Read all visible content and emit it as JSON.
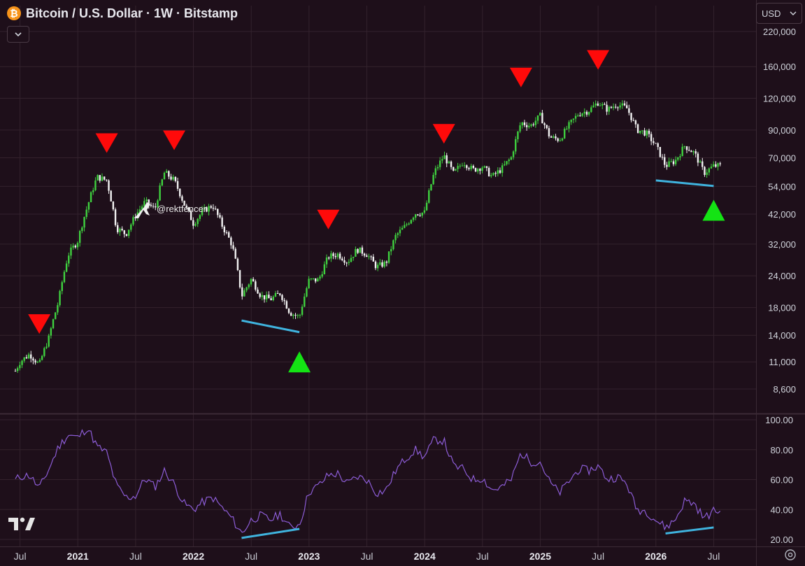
{
  "title": {
    "icon": "bitcoin-icon",
    "icon_glyph": "₿",
    "text": "Bitcoin / U.S. Dollar · 1W · Bitstamp"
  },
  "currency": {
    "value": "USD",
    "icon": "chevron-down-icon"
  },
  "collapse_icon": "chevron-down-icon",
  "settings_icon": "gear-icon",
  "logo": "tradingview-logo",
  "colors": {
    "background": "#1e0f1a",
    "grid": "#33222d",
    "bull": "#3fd13f",
    "bear": "#f2f2f2",
    "rsi": "#8c5cd6",
    "divergence": "#3fb3de",
    "sell_marker": "#ff0a0a",
    "buy_marker": "#14e314"
  },
  "chart_data": [
    {
      "type": "candlestick",
      "log_scale": true,
      "grid": true,
      "x_ticks": [
        "Jul",
        "2021",
        "Jul",
        "2022",
        "Jul",
        "2023",
        "Jul",
        "2024",
        "Jul",
        "2025",
        "Jul",
        "2026",
        "Jul"
      ],
      "y_ticks": [
        "220,000",
        "160,000",
        "120,000",
        "90,000",
        "70,000",
        "54,000",
        "42,000",
        "32,000",
        "24,000",
        "18,000",
        "14,000",
        "11,000",
        "8,600"
      ],
      "ylim": [
        7000,
        230000
      ],
      "annotation": "@rektfencer",
      "price_path": [
        [
          "2020-06",
          9200
        ],
        [
          "2020-07",
          11000
        ],
        [
          "2020-08",
          11800
        ],
        [
          "2020-09",
          10700
        ],
        [
          "2020-10",
          13700
        ],
        [
          "2020-11",
          19000
        ],
        [
          "2020-12",
          29000
        ],
        [
          "2021-01",
          33000
        ],
        [
          "2021-02",
          45000
        ],
        [
          "2021-03",
          58800
        ],
        [
          "2021-04",
          57000
        ],
        [
          "2021-05",
          37000
        ],
        [
          "2021-06",
          35000
        ],
        [
          "2021-07",
          41500
        ],
        [
          "2021-08",
          47000
        ],
        [
          "2021-09",
          43800
        ],
        [
          "2021-10",
          61300
        ],
        [
          "2021-11",
          57000
        ],
        [
          "2021-12",
          46300
        ],
        [
          "2022-01",
          38500
        ],
        [
          "2022-02",
          43200
        ],
        [
          "2022-03",
          45500
        ],
        [
          "2022-04",
          37700
        ],
        [
          "2022-05",
          31800
        ],
        [
          "2022-06",
          19900
        ],
        [
          "2022-07",
          23300
        ],
        [
          "2022-08",
          20000
        ],
        [
          "2022-09",
          19400
        ],
        [
          "2022-10",
          20500
        ],
        [
          "2022-11",
          17200
        ],
        [
          "2022-12",
          16500
        ],
        [
          "2023-01",
          23100
        ],
        [
          "2023-02",
          23100
        ],
        [
          "2023-03",
          28500
        ],
        [
          "2023-04",
          29200
        ],
        [
          "2023-05",
          27200
        ],
        [
          "2023-06",
          30500
        ],
        [
          "2023-07",
          29200
        ],
        [
          "2023-08",
          26000
        ],
        [
          "2023-09",
          27000
        ],
        [
          "2023-10",
          34500
        ],
        [
          "2023-11",
          37700
        ],
        [
          "2023-12",
          42300
        ],
        [
          "2024-01",
          42600
        ],
        [
          "2024-02",
          61200
        ],
        [
          "2024-03",
          71300
        ],
        [
          "2024-04",
          60600
        ],
        [
          "2024-05",
          67500
        ],
        [
          "2024-06",
          62700
        ],
        [
          "2024-07",
          64600
        ],
        [
          "2024-08",
          58900
        ],
        [
          "2024-09",
          63300
        ],
        [
          "2024-10",
          70200
        ],
        [
          "2024-11",
          96400
        ],
        [
          "2024-12",
          93500
        ],
        [
          "2025-01",
          102400
        ],
        [
          "2025-02",
          84300
        ],
        [
          "2025-03",
          82500
        ],
        [
          "2025-04",
          94200
        ],
        [
          "2025-05",
          104600
        ],
        [
          "2025-06",
          107100
        ],
        [
          "2025-07",
          115700
        ],
        [
          "2025-08",
          108200
        ],
        [
          "2025-09",
          114000
        ],
        [
          "2025-10",
          109500
        ],
        [
          "2025-11",
          90400
        ],
        [
          "2025-12",
          87500
        ],
        [
          "2026-01",
          78000
        ],
        [
          "2026-02",
          65000
        ],
        [
          "2026-03",
          68000
        ],
        [
          "2026-04",
          78000
        ],
        [
          "2026-05",
          73000
        ],
        [
          "2026-06",
          61000
        ],
        [
          "2026-07",
          65000
        ]
      ],
      "sell_signals": [
        [
          "2020-09",
          15500
        ],
        [
          "2021-04",
          80000
        ],
        [
          "2021-11",
          82000
        ],
        [
          "2023-03",
          40000
        ],
        [
          "2024-03",
          87000
        ],
        [
          "2024-11",
          145000
        ],
        [
          "2025-07",
          170000
        ]
      ],
      "buy_signals": [
        [
          "2022-12",
          11000
        ],
        [
          "2026-07",
          43500
        ]
      ],
      "divergence_lines": [
        [
          [
            "2022-06",
            16000
          ],
          [
            "2022-12",
            14400
          ]
        ],
        [
          [
            "2026-01",
            57000
          ],
          [
            "2026-07",
            54200
          ]
        ]
      ]
    },
    {
      "type": "line",
      "series": [
        {
          "values": []
        }
      ],
      "y_ticks": [
        "100.00",
        "80.00",
        "60.00",
        "40.00",
        "20.00"
      ],
      "ylim": [
        19,
        101
      ],
      "grid": true,
      "rsi_path": [
        [
          "2020-06",
          57
        ],
        [
          "2020-07",
          62
        ],
        [
          "2020-08",
          63
        ],
        [
          "2020-09",
          54
        ],
        [
          "2020-10",
          67
        ],
        [
          "2020-11",
          82
        ],
        [
          "2020-12",
          90
        ],
        [
          "2021-01",
          88
        ],
        [
          "2021-02",
          95
        ],
        [
          "2021-03",
          82
        ],
        [
          "2021-04",
          78
        ],
        [
          "2021-05",
          56
        ],
        [
          "2021-06",
          48
        ],
        [
          "2021-07",
          49
        ],
        [
          "2021-08",
          61
        ],
        [
          "2021-09",
          55
        ],
        [
          "2021-10",
          66
        ],
        [
          "2021-11",
          57
        ],
        [
          "2021-12",
          44
        ],
        [
          "2022-01",
          40
        ],
        [
          "2022-02",
          45
        ],
        [
          "2022-03",
          48
        ],
        [
          "2022-04",
          41
        ],
        [
          "2022-05",
          34
        ],
        [
          "2022-06",
          24
        ],
        [
          "2022-07",
          33
        ],
        [
          "2022-08",
          36
        ],
        [
          "2022-09",
          33
        ],
        [
          "2022-10",
          37
        ],
        [
          "2022-11",
          28
        ],
        [
          "2022-12",
          30
        ],
        [
          "2023-01",
          52
        ],
        [
          "2023-02",
          56
        ],
        [
          "2023-03",
          63
        ],
        [
          "2023-04",
          64
        ],
        [
          "2023-05",
          57
        ],
        [
          "2023-06",
          62
        ],
        [
          "2023-07",
          60
        ],
        [
          "2023-08",
          51
        ],
        [
          "2023-09",
          53
        ],
        [
          "2023-10",
          66
        ],
        [
          "2023-11",
          74
        ],
        [
          "2023-12",
          80
        ],
        [
          "2024-01",
          75
        ],
        [
          "2024-02",
          87
        ],
        [
          "2024-03",
          86
        ],
        [
          "2024-04",
          69
        ],
        [
          "2024-05",
          67
        ],
        [
          "2024-06",
          60
        ],
        [
          "2024-07",
          61
        ],
        [
          "2024-08",
          53
        ],
        [
          "2024-09",
          55
        ],
        [
          "2024-10",
          60
        ],
        [
          "2024-11",
          78
        ],
        [
          "2024-12",
          72
        ],
        [
          "2025-01",
          72
        ],
        [
          "2025-02",
          58
        ],
        [
          "2025-03",
          51
        ],
        [
          "2025-04",
          59
        ],
        [
          "2025-05",
          67
        ],
        [
          "2025-06",
          66
        ],
        [
          "2025-07",
          69
        ],
        [
          "2025-08",
          60
        ],
        [
          "2025-09",
          62
        ],
        [
          "2025-10",
          57
        ],
        [
          "2025-11",
          40
        ],
        [
          "2025-12",
          39
        ],
        [
          "2026-01",
          33
        ],
        [
          "2026-02",
          28
        ],
        [
          "2026-03",
          33
        ],
        [
          "2026-04",
          46
        ],
        [
          "2026-05",
          44
        ],
        [
          "2026-06",
          34
        ],
        [
          "2026-07",
          39
        ]
      ],
      "divergence_lines": [
        [
          [
            "2022-06",
            21
          ],
          [
            "2022-12",
            27
          ]
        ],
        [
          [
            "2026-02",
            24
          ],
          [
            "2026-07",
            28
          ]
        ]
      ]
    }
  ]
}
